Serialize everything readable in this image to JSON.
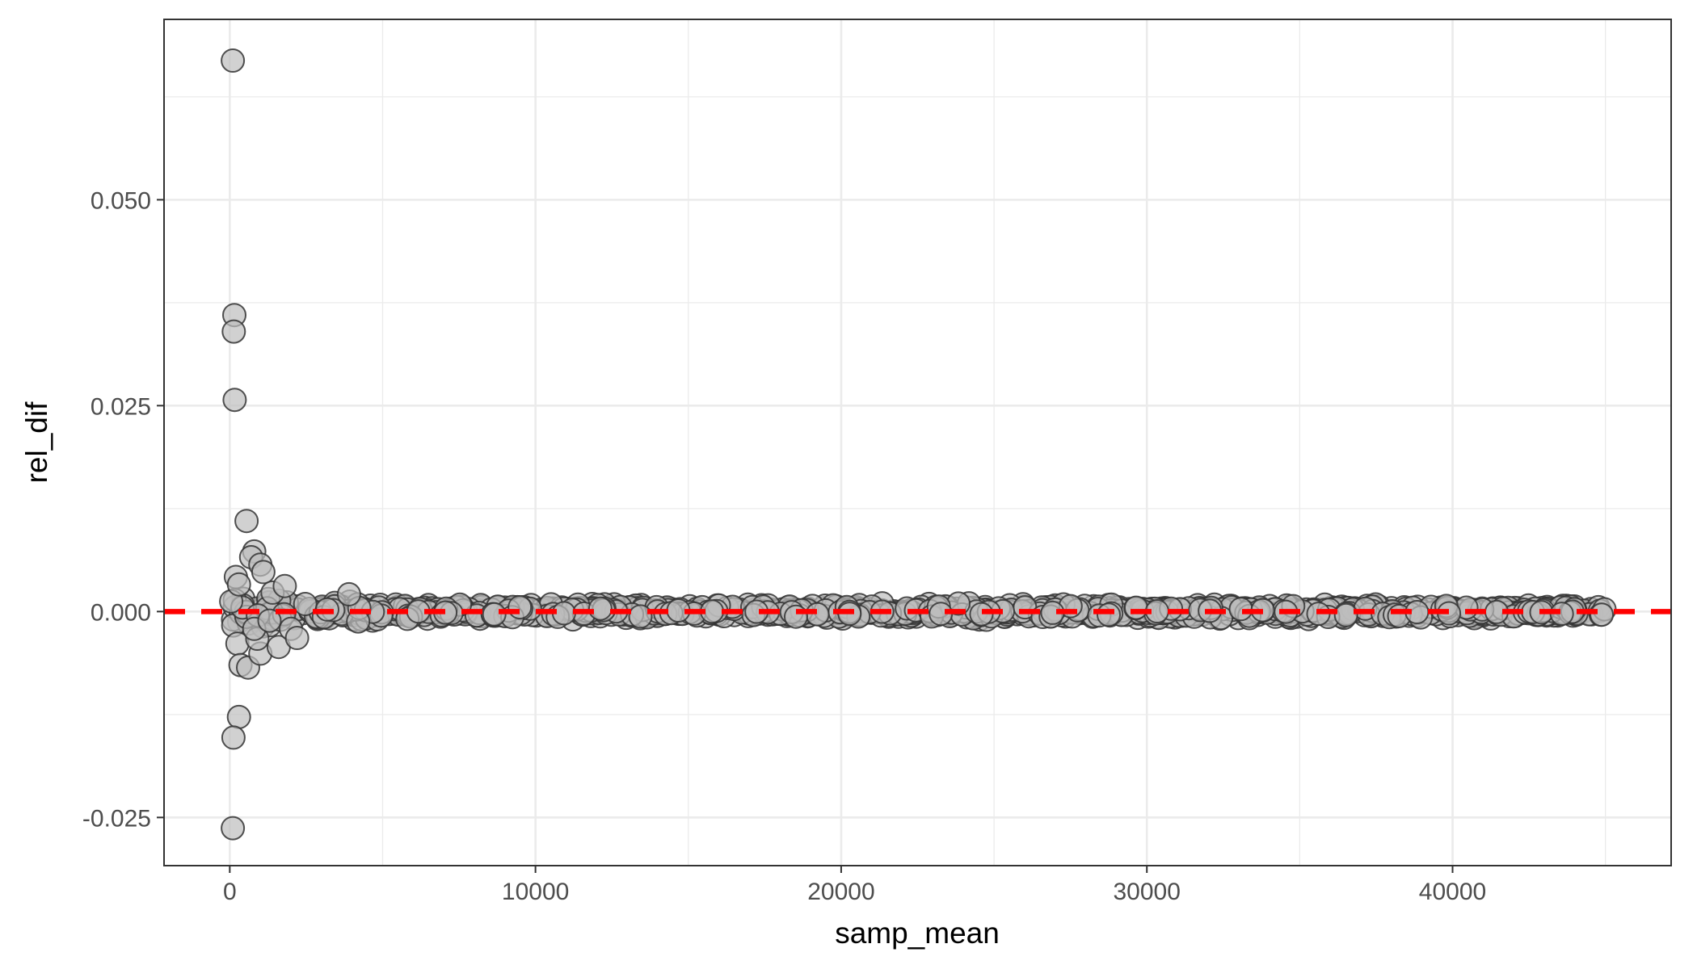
{
  "chart_data": {
    "type": "scatter",
    "xlabel": "samp_mean",
    "ylabel": "rel_dif",
    "xlim": [
      -2150,
      47150
    ],
    "ylim": [
      -0.03085,
      0.0719
    ],
    "x_ticks": [
      {
        "value": 0,
        "label": "0"
      },
      {
        "value": 10000,
        "label": "10000"
      },
      {
        "value": 20000,
        "label": "20000"
      },
      {
        "value": 30000,
        "label": "30000"
      },
      {
        "value": 40000,
        "label": "40000"
      }
    ],
    "y_ticks": [
      {
        "value": -0.025,
        "label": "-0.025"
      },
      {
        "value": 0.0,
        "label": "0.000"
      },
      {
        "value": 0.025,
        "label": "0.025"
      },
      {
        "value": 0.05,
        "label": "0.050"
      }
    ],
    "x_minor_gridlines": [
      5000,
      15000,
      25000,
      35000,
      45000
    ],
    "y_minor_gridlines": [
      -0.0125,
      0.0125,
      0.0375,
      0.0625
    ],
    "grid": true,
    "reference_line": {
      "y": 0,
      "style": "dashed",
      "color": "#ff0000"
    },
    "point_style": {
      "fill": "#bdbdbd",
      "stroke": "#333333",
      "alpha": 0.7
    },
    "outlier_points": [
      {
        "x": 100,
        "y": 0.0669
      },
      {
        "x": 150,
        "y": 0.036
      },
      {
        "x": 130,
        "y": 0.034
      },
      {
        "x": 160,
        "y": 0.0257
      },
      {
        "x": 550,
        "y": 0.011
      },
      {
        "x": 300,
        "y": -0.0128
      },
      {
        "x": 120,
        "y": -0.0153
      },
      {
        "x": 100,
        "y": -0.0263
      },
      {
        "x": 800,
        "y": 0.0073
      },
      {
        "x": 700,
        "y": 0.0066
      },
      {
        "x": 1000,
        "y": 0.0057
      },
      {
        "x": 1100,
        "y": 0.0048
      },
      {
        "x": 200,
        "y": 0.0042
      },
      {
        "x": 300,
        "y": 0.0033
      },
      {
        "x": 250,
        "y": -0.0039
      },
      {
        "x": 350,
        "y": -0.0065
      },
      {
        "x": 600,
        "y": -0.0068
      },
      {
        "x": 1000,
        "y": -0.0051
      },
      {
        "x": 900,
        "y": -0.0033
      },
      {
        "x": 1600,
        "y": -0.0043
      },
      {
        "x": 1400,
        "y": 0.0023
      },
      {
        "x": 1800,
        "y": 0.0031
      },
      {
        "x": 2000,
        "y": -0.0021
      },
      {
        "x": 2200,
        "y": -0.0032
      },
      {
        "x": 800,
        "y": -0.0021
      },
      {
        "x": 1300,
        "y": -0.0011
      },
      {
        "x": 3900,
        "y": 0.0021
      },
      {
        "x": 4200,
        "y": -0.0012
      }
    ],
    "dense_band": {
      "x_range": [
        0,
        45000
      ],
      "points_count": 1100,
      "envelope": [
        {
          "x": 0,
          "half_width": 0.003
        },
        {
          "x": 1500,
          "half_width": 0.0025
        },
        {
          "x": 3000,
          "half_width": 0.0018
        },
        {
          "x": 6000,
          "half_width": 0.0012
        },
        {
          "x": 45000,
          "half_width": 0.0011
        }
      ]
    }
  }
}
